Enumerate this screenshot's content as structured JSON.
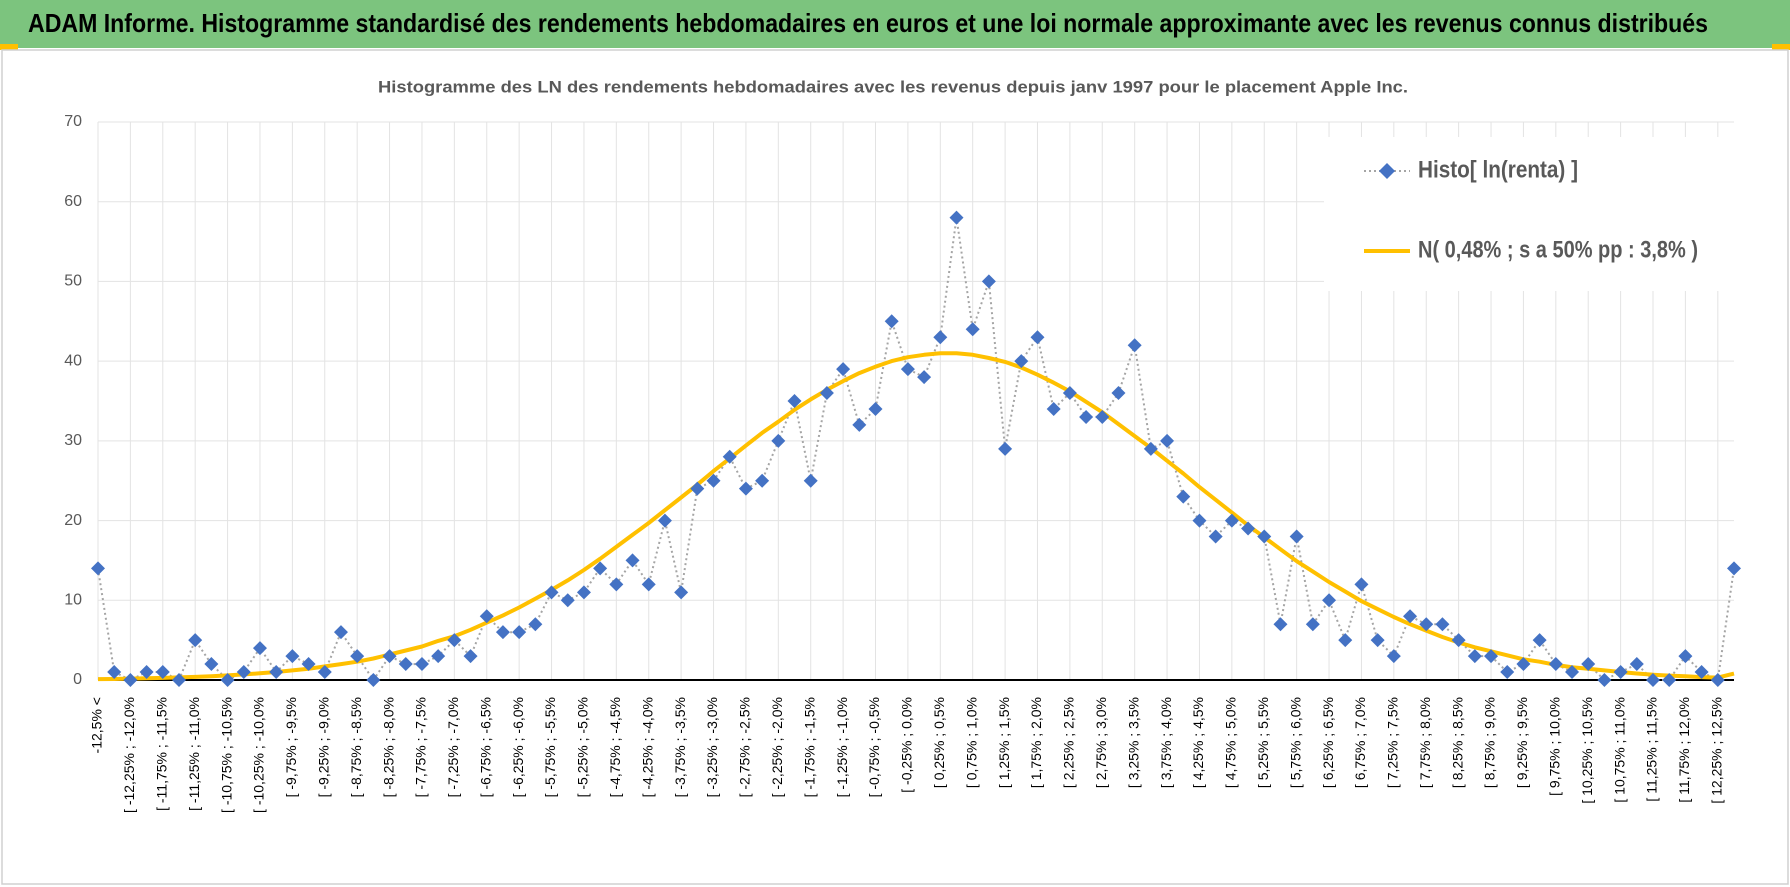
{
  "header": {
    "title": "ADAM Informe. Histogramme standardisé des rendements hebdomadaires en euros et une loi normale approximante avec les revenus connus distribués"
  },
  "chart_data": {
    "type": "line",
    "title": "Histogramme des LN des rendements hebdomadaires avec les revenus depuis janv 1997 pour le placement Apple Inc.",
    "categories": [
      "-12,5% <",
      null,
      "[ -12,25% ; -12,0%",
      null,
      "[ -11,75% ; -11,5%",
      null,
      "[ -11,25% ; -11,0%",
      null,
      "[ -10,75% ; -10,5%",
      null,
      "[ -10,25% ; -10,0%",
      null,
      "[ -9,75% ; -9,5%",
      null,
      "[ -9,25% ; -9,0%",
      null,
      "[ -8,75% ; -8,5%",
      null,
      "[ -8,25% ; -8,0%",
      null,
      "[ -7,75% ; -7,5%",
      null,
      "[ -7,25% ; -7,0%",
      null,
      "[ -6,75% ; -6,5%",
      null,
      "[ -6,25% ; -6,0%",
      null,
      "[ -5,75% ; -5,5%",
      null,
      "[ -5,25% ; -5,0%",
      null,
      "[ -4,75% ; -4,5%",
      null,
      "[ -4,25% ; -4,0%",
      null,
      "[ -3,75% ; -3,5%",
      null,
      "[ -3,25% ; -3,0%",
      null,
      "[ -2,75% ; -2,5%",
      null,
      "[ -2,25% ; -2,0%",
      null,
      "[ -1,75% ; -1,5%",
      null,
      "[ -1,25% ; -1,0%",
      null,
      "[ -0,75% ; -0,5%",
      null,
      "[ -0,25% ; 0,0%",
      null,
      "[ 0,25% ; 0,5%",
      null,
      "[ 0,75% ; 1,0%",
      null,
      "[ 1,25% ; 1,5%",
      null,
      "[ 1,75% ; 2,0%",
      null,
      "[ 2,25% ; 2,5%",
      null,
      "[ 2,75% ; 3,0%",
      null,
      "[ 3,25% ; 3,5%",
      null,
      "[ 3,75% ; 4,0%",
      null,
      "[ 4,25% ; 4,5%",
      null,
      "[ 4,75% ; 5,0%",
      null,
      "[ 5,25% ; 5,5%",
      null,
      "[ 5,75% ; 6,0%",
      null,
      "[ 6,25% ; 6,5%",
      null,
      "[ 6,75% ; 7,0%",
      null,
      "[ 7,25% ; 7,5%",
      null,
      "[ 7,75% ; 8,0%",
      null,
      "[ 8,25% ; 8,5%",
      null,
      "[ 8,75% ; 9,0%",
      null,
      "[ 9,25% ; 9,5%",
      null,
      "[ 9,75% ; 10,0%",
      null,
      "[ 10,25% ; 10,5%",
      null,
      "[ 10,75% ; 11,0%",
      null,
      "[ 11,25% ; 11,5%",
      null,
      "[ 11,75% ; 12,0%",
      null,
      "[ 12,25% ; 12,5%",
      null
    ],
    "series": [
      {
        "name": "Histo[ ln(renta) ]",
        "color": "#4472c4",
        "line_color": "#a5a5a5",
        "values": [
          14,
          1,
          0,
          1,
          1,
          0,
          5,
          2,
          0,
          1,
          4,
          1,
          3,
          2,
          1,
          6,
          3,
          0,
          3,
          2,
          2,
          3,
          5,
          3,
          8,
          6,
          6,
          7,
          11,
          10,
          11,
          14,
          12,
          15,
          12,
          20,
          11,
          24,
          25,
          28,
          24,
          25,
          30,
          35,
          25,
          36,
          39,
          32,
          34,
          45,
          39,
          38,
          43,
          58,
          44,
          50,
          29,
          40,
          43,
          34,
          36,
          33,
          33,
          36,
          42,
          29,
          30,
          23,
          20,
          18,
          20,
          19,
          18,
          7,
          18,
          7,
          10,
          5,
          12,
          5,
          3,
          8,
          7,
          7,
          5,
          3,
          3,
          1,
          2,
          5,
          2,
          1,
          2,
          0,
          1,
          2,
          0,
          0,
          3,
          1,
          0,
          14
        ]
      },
      {
        "name": "N( 0,48% ; s a 50% pp : 3,8% )",
        "color": "#ffc000",
        "values": [
          0.11,
          0.13,
          0.17,
          0.21,
          0.26,
          0.32,
          0.39,
          0.47,
          0.58,
          0.7,
          0.84,
          1.0,
          1.2,
          1.4,
          1.7,
          2.0,
          2.3,
          2.7,
          3.2,
          3.7,
          4.2,
          4.9,
          5.5,
          6.3,
          7.2,
          8.1,
          9.1,
          10.2,
          11.3,
          12.5,
          13.8,
          15.2,
          16.7,
          18.2,
          19.7,
          21.3,
          22.9,
          24.5,
          26.2,
          27.8,
          29.4,
          31.0,
          32.4,
          33.9,
          35.2,
          36.4,
          37.5,
          38.5,
          39.3,
          40.0,
          40.5,
          40.8,
          41.0,
          41.0,
          40.8,
          40.4,
          39.9,
          39.2,
          38.3,
          37.3,
          36.2,
          34.9,
          33.6,
          32.1,
          30.6,
          29.1,
          27.5,
          25.9,
          24.2,
          22.6,
          21.0,
          19.4,
          17.9,
          16.4,
          14.9,
          13.6,
          12.3,
          11.1,
          9.9,
          8.9,
          7.9,
          7.0,
          6.2,
          5.4,
          4.7,
          4.1,
          3.6,
          3.1,
          2.6,
          2.3,
          1.9,
          1.6,
          1.4,
          1.2,
          1.0,
          0.81,
          0.67,
          0.55,
          0.46,
          0.37,
          0.3,
          0.8
        ]
      }
    ],
    "ylim": [
      0,
      70
    ],
    "yticks": [
      0,
      10,
      20,
      30,
      40,
      50,
      60,
      70
    ],
    "grid": true,
    "legend": "upper right"
  }
}
